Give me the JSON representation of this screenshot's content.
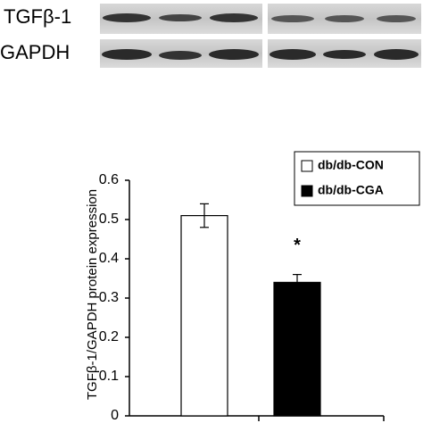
{
  "blot": {
    "labels": [
      "TGFβ-1",
      "GAPDH"
    ]
  },
  "chart_data": {
    "type": "bar",
    "ylabel": "TGFβ-1/GAPDH protein expression",
    "categories": [
      null
    ],
    "series": [
      {
        "name": "db/db-CON",
        "color": "#ffffff",
        "values": [
          0.51
        ],
        "errors": [
          0.03
        ]
      },
      {
        "name": "db/db-CGA",
        "color": "#000000",
        "values": [
          0.34
        ],
        "errors": [
          0.02
        ]
      }
    ],
    "annotation": "*",
    "ylim": [
      0,
      0.6
    ],
    "yticks": [
      0,
      0.1,
      0.2,
      0.3,
      0.4,
      0.5,
      0.6
    ],
    "legend": "upper-right"
  }
}
